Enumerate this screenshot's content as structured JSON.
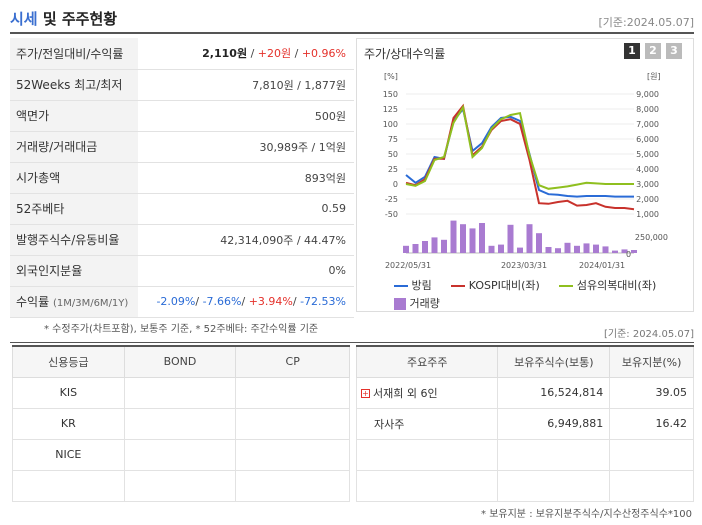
{
  "header": {
    "title_a": "시세",
    "title_b": " 및 주주현황",
    "basis": "[기준:2024.05.07]"
  },
  "quote": {
    "rows": [
      {
        "label": "주가/전일대비/수익률"
      },
      {
        "label": "52Weeks 최고/최저",
        "value": "7,810원 / 1,877원"
      },
      {
        "label": "액면가",
        "value": "500원"
      },
      {
        "label": "거래량/거래대금",
        "value": "30,989주 / 1억원"
      },
      {
        "label": "시가총액",
        "value": "893억원"
      },
      {
        "label": "52주베타",
        "value": "0.59"
      },
      {
        "label": "발행주식수/유동비율",
        "value": "42,314,090주 / 44.47%"
      },
      {
        "label": "외국인지분율",
        "value": "0%"
      },
      {
        "label": "수익률",
        "label_sub": "(1M/3M/6M/1Y)"
      }
    ],
    "price": "2,110원",
    "change": "+20원",
    "pct": "+0.96%",
    "ret1": "-2.09%",
    "ret2": "-7.66%",
    "ret3": "+3.94%",
    "ret4": "-72.53%"
  },
  "chart": {
    "title": "주가/상대수익률",
    "tabs": [
      "1",
      "2",
      "3"
    ],
    "left_unit": "[%]",
    "right_unit": "[원]",
    "vol_tick": "250,000",
    "vol_zero": "0",
    "colors": {
      "stock": "#2a6bd6",
      "kospi": "#c8322c",
      "sector": "#8fbf1f",
      "volume": "#a97bd1"
    },
    "legend": {
      "stock": "방림",
      "kospi": "KOSPI대비(좌)",
      "sector": "섬유의복대비(좌)",
      "volume": "거래량"
    }
  },
  "chart_data": {
    "type": "line",
    "x_ticks": [
      "2022/05/31",
      "2023/03/31",
      "2024/01/31"
    ],
    "ylim_left": [
      -50,
      150
    ],
    "y_ticks_left": [
      "150",
      "125",
      "100",
      "75",
      "50",
      "25",
      "0",
      "-25",
      "-50"
    ],
    "ylim_right": [
      1000,
      9000
    ],
    "y_ticks_right": [
      "9,000",
      "8,000",
      "7,000",
      "6,000",
      "5,000",
      "4,000",
      "3,000",
      "2,000",
      "1,000"
    ],
    "x_index": [
      0,
      1,
      2,
      3,
      4,
      5,
      6,
      7,
      8,
      9,
      10,
      11,
      12,
      13,
      14,
      15,
      16,
      17,
      18,
      19,
      20,
      21,
      22,
      23,
      24
    ],
    "series": [
      {
        "name": "방림",
        "axis": "left",
        "values": [
          15,
          2,
          12,
          45,
          42,
          105,
          125,
          55,
          68,
          95,
          110,
          112,
          105,
          50,
          -10,
          -17,
          -18,
          -20,
          -21,
          -20,
          -20,
          -20,
          -21,
          -21,
          -21
        ]
      },
      {
        "name": "KOSPI대비(좌)",
        "axis": "left",
        "values": [
          2,
          -2,
          8,
          42,
          42,
          110,
          130,
          48,
          62,
          90,
          105,
          108,
          100,
          40,
          -32,
          -33,
          -30,
          -28,
          -36,
          -35,
          -32,
          -38,
          -40,
          -40,
          -42
        ]
      },
      {
        "name": "섬유의복대비(좌)",
        "axis": "left",
        "values": [
          0,
          -3,
          5,
          40,
          45,
          102,
          128,
          45,
          60,
          92,
          108,
          115,
          118,
          48,
          -2,
          -8,
          -6,
          -4,
          -1,
          2,
          1,
          0,
          0,
          0,
          0
        ]
      }
    ],
    "volume": [
      120000,
      150000,
      200000,
      260000,
      220000,
      540000,
      480000,
      410000,
      500000,
      120000,
      140000,
      470000,
      90000,
      480000,
      330000,
      100000,
      80000,
      170000,
      120000,
      160000,
      140000,
      110000,
      40000,
      60000,
      50000
    ]
  },
  "notes": {
    "note1": "* 수정주가(차트포함), 보통주 기준, * 52주베타: 주간수익률 기준",
    "basis2": "[기준: 2024.05.07]",
    "note2": "* 보유지분 : 보유지분주식수/지수산정주식수*100"
  },
  "credit": {
    "headers": [
      "신용등급",
      "BOND",
      "CP"
    ],
    "rows": [
      [
        "KIS",
        "",
        ""
      ],
      [
        "KR",
        "",
        ""
      ],
      [
        "NICE",
        "",
        ""
      ],
      [
        "",
        "",
        ""
      ]
    ]
  },
  "holders": {
    "headers": [
      "주요주주",
      "보유주식수(보통)",
      "보유지분(%)"
    ],
    "rows": [
      [
        "서재희 외 6인",
        "16,524,814",
        "39.05"
      ],
      [
        "자사주",
        "6,949,881",
        "16.42"
      ],
      [
        "",
        "",
        ""
      ],
      [
        "",
        "",
        ""
      ]
    ]
  }
}
